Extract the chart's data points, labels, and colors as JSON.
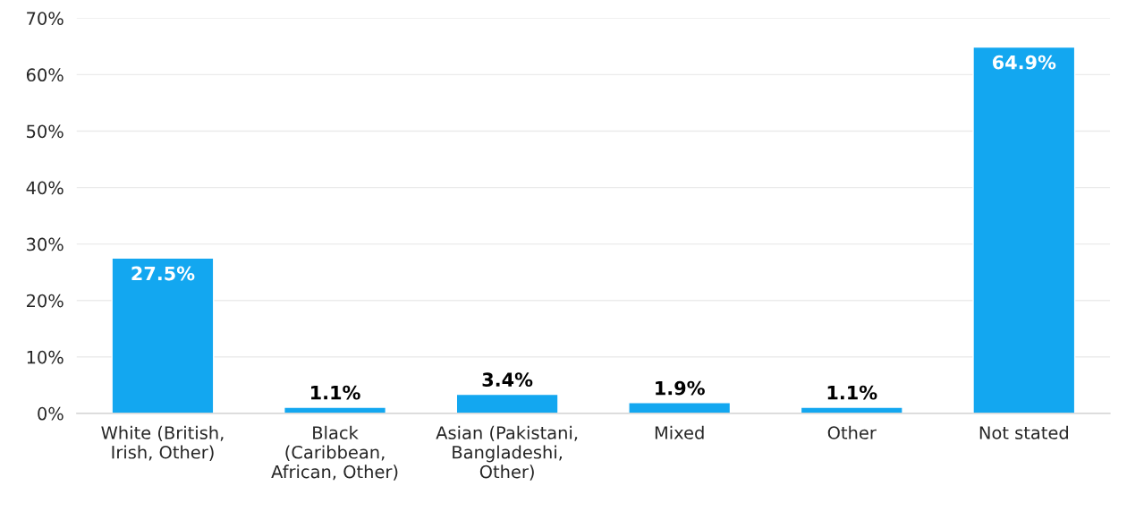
{
  "chart_data": {
    "type": "bar",
    "categories": [
      "White (British,\nIrish, Other)",
      "Black\n(Caribbean,\nAfrican, Other)",
      "Asian (Pakistani,\nBangladeshi,\nOther)",
      "Mixed",
      "Other",
      "Not stated"
    ],
    "values": [
      27.5,
      1.1,
      3.4,
      1.9,
      1.1,
      64.9
    ],
    "value_labels": [
      "27.5%",
      "1.1%",
      "3.4%",
      "1.9%",
      "1.1%",
      "64.9%"
    ],
    "color": "#13a7f0",
    "ylim": [
      0,
      70
    ],
    "yticks": [
      {
        "value": 0,
        "label": "0%"
      },
      {
        "value": 10,
        "label": "10%"
      },
      {
        "value": 20,
        "label": "20%"
      },
      {
        "value": 30,
        "label": "30%"
      },
      {
        "value": 40,
        "label": "40%"
      },
      {
        "value": 50,
        "label": "50%"
      },
      {
        "value": 60,
        "label": "60%"
      },
      {
        "value": 70,
        "label": "70%"
      }
    ],
    "grid": "y"
  }
}
